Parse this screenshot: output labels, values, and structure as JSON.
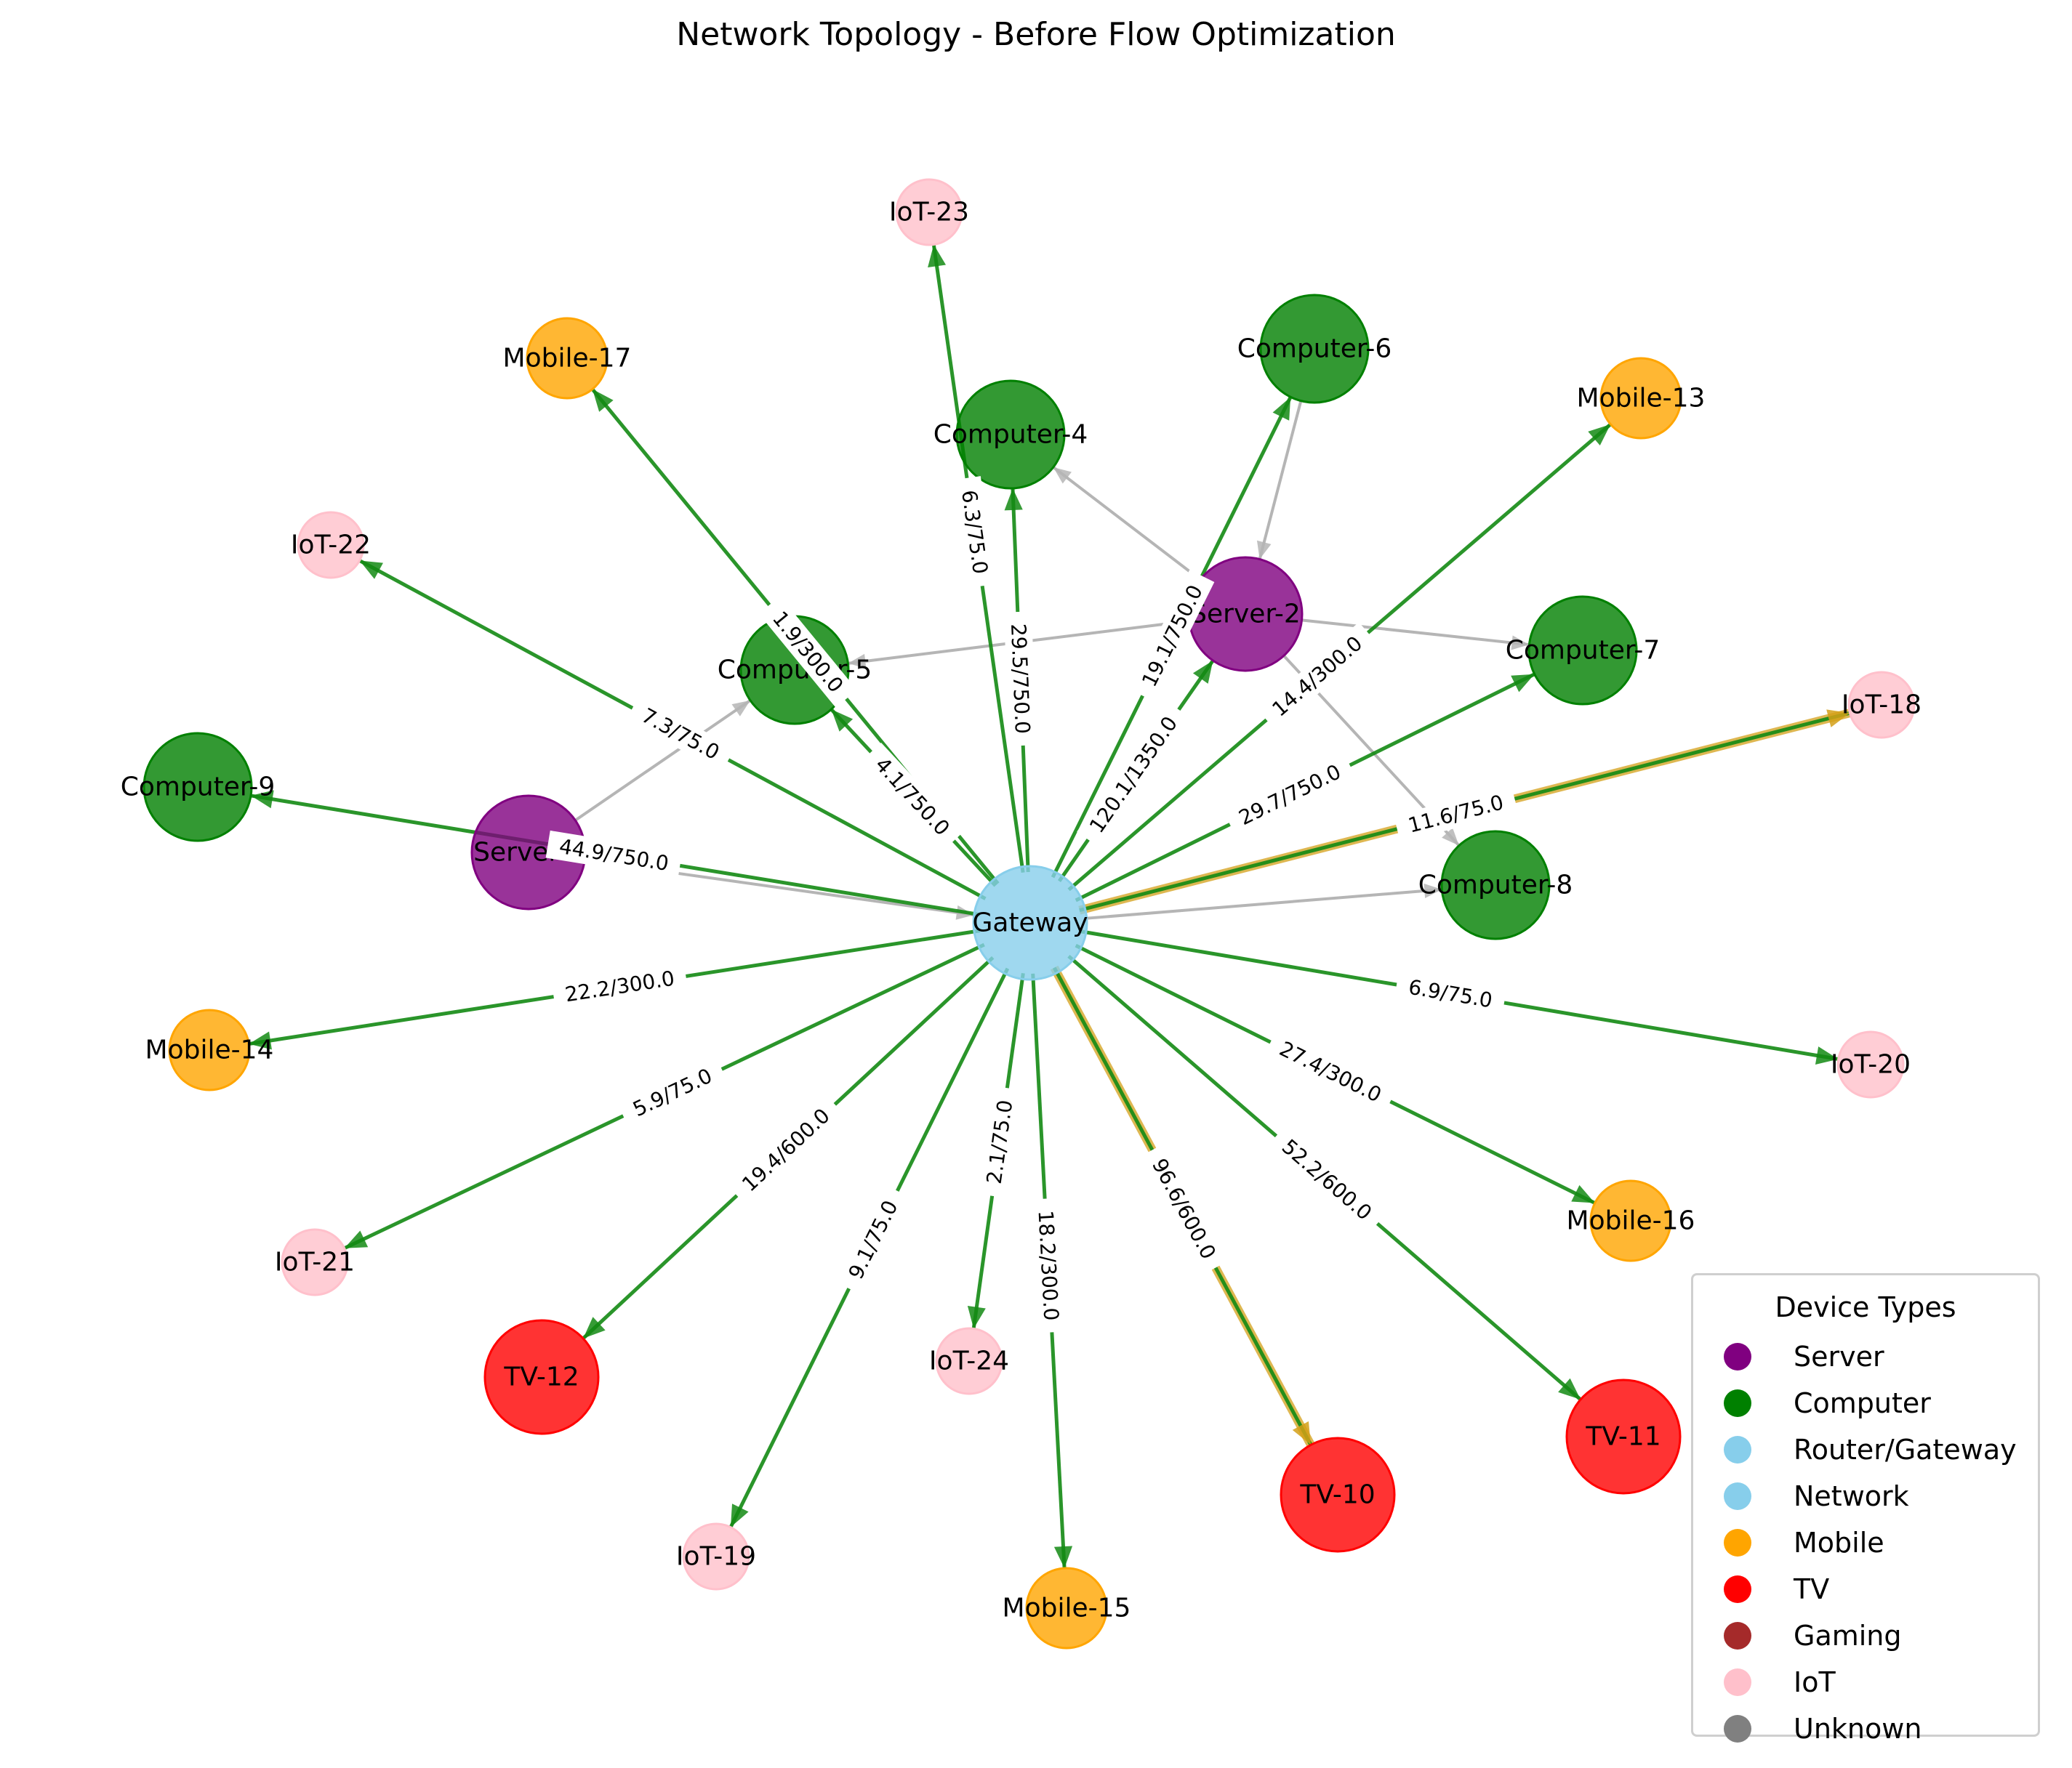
{
  "title": "Network Topology - Before Flow Optimization",
  "colors": {
    "Server": "#800080",
    "Computer": "#008000",
    "Router/Gateway": "#87ceeb",
    "Network": "#87ceeb",
    "Mobile": "#ffa500",
    "TV": "#ff0000",
    "Gaming": "#a52a2a",
    "IoT": "#ffc0cb",
    "Unknown": "#808080",
    "flow_edge": "#138a13",
    "flow_edge_high": "#d4a017",
    "link_edge": "#b5b5b5"
  },
  "legend": {
    "title": "Device Types",
    "items": [
      {
        "label": "Server",
        "color": "#800080"
      },
      {
        "label": "Computer",
        "color": "#008000"
      },
      {
        "label": "Router/Gateway",
        "color": "#87ceeb"
      },
      {
        "label": "Network",
        "color": "#87ceeb"
      },
      {
        "label": "Mobile",
        "color": "#ffa500"
      },
      {
        "label": "TV",
        "color": "#ff0000"
      },
      {
        "label": "Gaming",
        "color": "#a52a2a"
      },
      {
        "label": "IoT",
        "color": "#ffc0cb"
      },
      {
        "label": "Unknown",
        "color": "#808080"
      }
    ]
  },
  "nodes": [
    {
      "id": "Gateway",
      "type": "Router/Gateway"
    },
    {
      "id": "Server-2",
      "type": "Server"
    },
    {
      "id": "Server-3",
      "type": "Server"
    },
    {
      "id": "Computer-4",
      "type": "Computer"
    },
    {
      "id": "Computer-5",
      "type": "Computer"
    },
    {
      "id": "Computer-6",
      "type": "Computer"
    },
    {
      "id": "Computer-7",
      "type": "Computer"
    },
    {
      "id": "Computer-8",
      "type": "Computer"
    },
    {
      "id": "Computer-9",
      "type": "Computer"
    },
    {
      "id": "TV-10",
      "type": "TV"
    },
    {
      "id": "TV-11",
      "type": "TV"
    },
    {
      "id": "TV-12",
      "type": "TV"
    },
    {
      "id": "Mobile-13",
      "type": "Mobile"
    },
    {
      "id": "Mobile-14",
      "type": "Mobile"
    },
    {
      "id": "Mobile-15",
      "type": "Mobile"
    },
    {
      "id": "Mobile-16",
      "type": "Mobile"
    },
    {
      "id": "Mobile-17",
      "type": "Mobile"
    },
    {
      "id": "IoT-18",
      "type": "IoT"
    },
    {
      "id": "IoT-19",
      "type": "IoT"
    },
    {
      "id": "IoT-20",
      "type": "IoT"
    },
    {
      "id": "IoT-21",
      "type": "IoT"
    },
    {
      "id": "IoT-22",
      "type": "IoT"
    },
    {
      "id": "IoT-23",
      "type": "IoT"
    },
    {
      "id": "IoT-24",
      "type": "IoT"
    }
  ],
  "links": [
    {
      "source": "Server-2",
      "target": "Computer-4"
    },
    {
      "source": "Server-2",
      "target": "Computer-5"
    },
    {
      "source": "Server-2",
      "target": "Computer-7"
    },
    {
      "source": "Server-2",
      "target": "Computer-8"
    },
    {
      "source": "Computer-6",
      "target": "Server-2"
    },
    {
      "source": "Server-3",
      "target": "Computer-5"
    },
    {
      "source": "Server-3",
      "target": "Gateway"
    },
    {
      "source": "Gateway",
      "target": "Computer-8"
    }
  ],
  "flows": [
    {
      "target": "IoT-23",
      "label": "6.3/75.0",
      "level": "normal"
    },
    {
      "target": "Computer-4",
      "label": "29.5/750.0",
      "level": "normal"
    },
    {
      "target": "Computer-6",
      "label": "19.1/750.0",
      "level": "normal"
    },
    {
      "target": "Server-2",
      "label": "120.1/1350.0",
      "level": "normal"
    },
    {
      "target": "Mobile-13",
      "label": "14.4/300.0",
      "level": "normal"
    },
    {
      "target": "Computer-7",
      "label": "29.7/750.0",
      "level": "normal"
    },
    {
      "target": "IoT-18",
      "label": "11.6/75.0",
      "level": "high"
    },
    {
      "target": "IoT-20",
      "label": "6.9/75.0",
      "level": "normal"
    },
    {
      "target": "Mobile-16",
      "label": "27.4/300.0",
      "level": "normal"
    },
    {
      "target": "TV-11",
      "label": "52.2/600.0",
      "level": "normal"
    },
    {
      "target": "TV-10",
      "label": "96.6/600.0",
      "level": "high"
    },
    {
      "target": "Mobile-15",
      "label": "18.2/300.0",
      "level": "normal"
    },
    {
      "target": "IoT-24",
      "label": "2.1/75.0",
      "level": "normal"
    },
    {
      "target": "IoT-19",
      "label": "9.1/75.0",
      "level": "normal"
    },
    {
      "target": "TV-12",
      "label": "19.4/600.0",
      "level": "normal"
    },
    {
      "target": "IoT-21",
      "label": "5.9/75.0",
      "level": "normal"
    },
    {
      "target": "Mobile-14",
      "label": "22.2/300.0",
      "level": "normal"
    },
    {
      "target": "Computer-9",
      "label": "44.9/750.0",
      "level": "normal"
    },
    {
      "target": "IoT-22",
      "label": "7.3/75.0",
      "level": "normal"
    },
    {
      "target": "Computer-5",
      "label": "4.1/750.0",
      "level": "normal"
    },
    {
      "target": "Mobile-17",
      "label": "1.9/300.0",
      "level": "normal"
    }
  ]
}
